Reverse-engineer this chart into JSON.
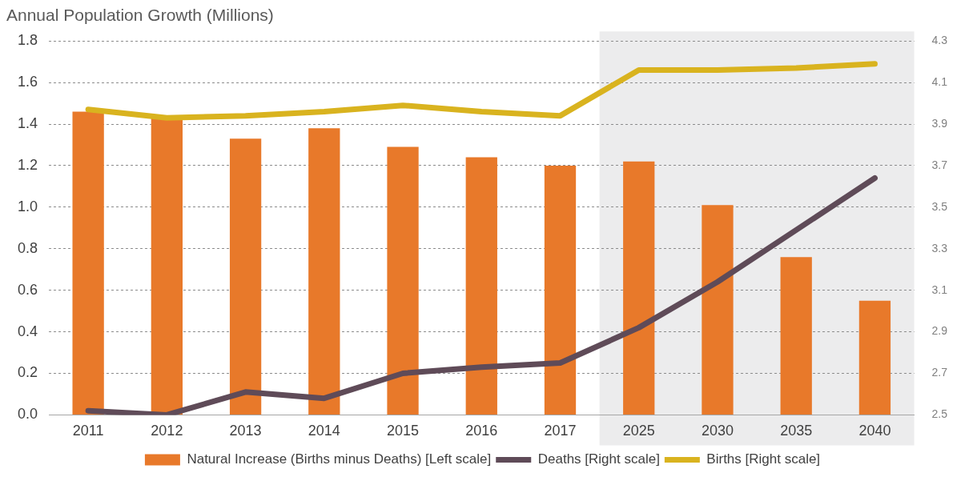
{
  "chart_data": {
    "type": "bar",
    "title": "Annual Population Growth (Millions)",
    "categories": [
      "2011",
      "2012",
      "2013",
      "2014",
      "2015",
      "2016",
      "2017",
      "2025",
      "2030",
      "2035",
      "2040"
    ],
    "series": [
      {
        "name": "Natural Increase (Births minus Deaths) [Left scale]",
        "color": "#e8792a",
        "values": [
          1.46,
          1.43,
          1.33,
          1.38,
          1.29,
          1.24,
          1.2,
          1.22,
          1.01,
          0.76,
          0.55
        ]
      },
      {
        "name": "Deaths [Right scale]",
        "type": "line",
        "axis": "y2",
        "color": "#5f4b58",
        "values": [
          2.52,
          2.5,
          2.61,
          2.58,
          2.7,
          2.73,
          2.75,
          2.92,
          3.14,
          3.39,
          3.64
        ]
      },
      {
        "name": "Births [Right scale]",
        "type": "line",
        "axis": "y2",
        "color": "#d9b31f",
        "values": [
          3.97,
          3.93,
          3.94,
          3.96,
          3.99,
          3.96,
          3.94,
          4.16,
          4.16,
          4.17,
          4.19
        ]
      }
    ],
    "ylim": [
      0,
      1.8
    ],
    "yticks": [
      {
        "value": 0,
        "label": "0.0"
      },
      0.2,
      0.4,
      0.6,
      0.8,
      {
        "value": 1,
        "label": "1.0"
      },
      1.2,
      1.4,
      1.6,
      1.8
    ],
    "y2lim": [
      2.5,
      4.3
    ],
    "y2ticks": [
      2.5,
      2.7,
      2.9,
      3.1,
      3.3,
      3.5,
      3.7,
      3.9,
      4.1,
      4.3
    ],
    "bands": [
      {
        "axis": "x",
        "from": "2025",
        "to": "2040",
        "color": "#ececed"
      }
    ],
    "grid": "y",
    "legend": "bottom",
    "marker": "none",
    "line_style": "solid"
  }
}
